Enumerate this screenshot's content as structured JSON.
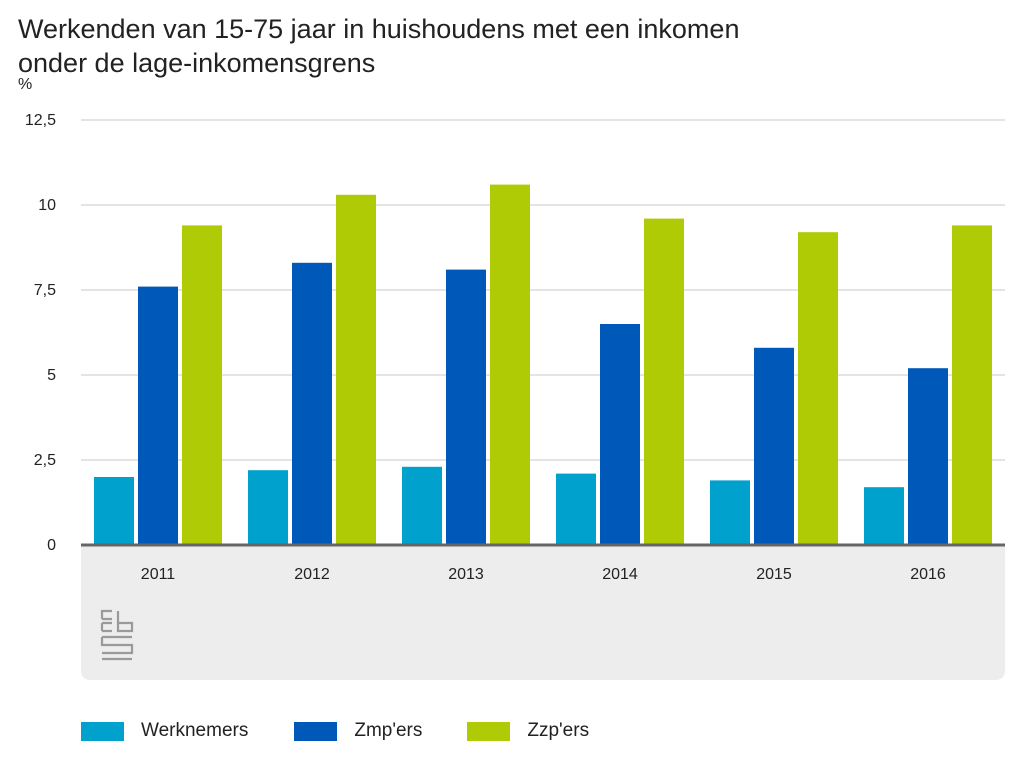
{
  "title_line1": "Werkenden van 15-75 jaar in huishoudens met een inkomen",
  "title_line2": "onder de lage-inkomensgrens",
  "logo_name": "cbs-logo",
  "chart_data": {
    "type": "bar",
    "title": "Werkenden van 15-75 jaar in huishoudens met een inkomen onder de lage-inkomensgrens",
    "ylabel": "%",
    "xlabel": "",
    "ylim": [
      0,
      12.5
    ],
    "yticks": [
      0,
      2.5,
      5,
      7.5,
      10,
      12.5
    ],
    "ytick_labels": [
      "0",
      "2,5",
      "5",
      "7,5",
      "10",
      "12,5"
    ],
    "grid": true,
    "legend_position": "bottom",
    "categories": [
      "2011",
      "2012",
      "2013",
      "2014",
      "2015",
      "2016"
    ],
    "series": [
      {
        "name": "Werknemers",
        "color": "#00a1cd",
        "values": [
          2.0,
          2.2,
          2.3,
          2.1,
          1.9,
          1.7
        ]
      },
      {
        "name": "Zmp'ers",
        "color": "#0058b8",
        "values": [
          7.6,
          8.3,
          8.1,
          6.5,
          5.8,
          5.2
        ]
      },
      {
        "name": "Zzp'ers",
        "color": "#afcb05",
        "values": [
          9.4,
          10.3,
          10.6,
          9.6,
          9.2,
          9.4
        ]
      }
    ]
  }
}
